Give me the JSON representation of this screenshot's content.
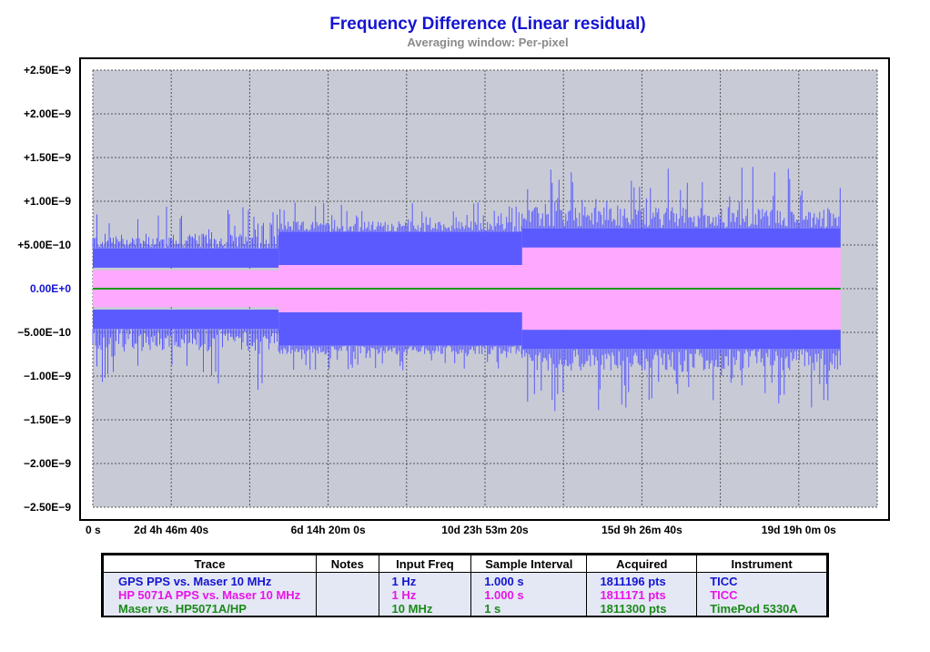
{
  "title": "Frequency Difference (Linear residual)",
  "subtitle": "Averaging window: Per-pixel",
  "chart_data": {
    "type": "line",
    "title": "Frequency Difference (Linear residual)",
    "subtitle": "Averaging window: Per-pixel",
    "y_ticks": [
      "+2.50E−9",
      "+2.00E−9",
      "+1.50E−9",
      "+1.00E−9",
      "+5.00E−10",
      "0.00E+0",
      "−5.00E−10",
      "−1.00E−9",
      "−1.50E−9",
      "−2.00E−9",
      "−2.50E−9"
    ],
    "y_tick_values": [
      2.5e-09,
      2e-09,
      1.5e-09,
      1e-09,
      5e-10,
      0,
      -5e-10,
      -1e-09,
      -1.5e-09,
      -2e-09,
      -2.5e-09
    ],
    "ylim": [
      -2.5e-09,
      2.5e-09
    ],
    "x_ticks": [
      "0 s",
      "2d 4h 46m 40s",
      "6d 14h 20m 0s",
      "10d 23h 53m 20s",
      "15d 9h 26m 40s",
      "19d 19h 0m 0s"
    ],
    "x_tick_values_s": [
      0,
      190000,
      570000,
      950000,
      1330000,
      1710000
    ],
    "xlim_s": [
      0,
      1900000
    ],
    "data_end_s": 1811300,
    "grid": true,
    "series": [
      {
        "name": "GPS PPS vs. Maser 10 MHz",
        "color": "#5a5aff",
        "segments": [
          {
            "from_s": 0,
            "to_s": 450000,
            "core_hi": 4.6e-10,
            "core_lo": 2.4e-10,
            "spike": 9.5e-10,
            "spike_lo": -1.2e-09
          },
          {
            "from_s": 450000,
            "to_s": 1040000,
            "core_hi": 6.5e-10,
            "core_lo": 2.7e-10,
            "spike": 1e-09,
            "spike_lo": -9.5e-10
          },
          {
            "from_s": 1040000,
            "to_s": 1811300,
            "core_hi": 6.9e-10,
            "core_lo": 4.7e-10,
            "spike": 1.4e-09,
            "spike_lo": -1.4e-09
          }
        ]
      },
      {
        "name": "HP 5071A PPS vs. Maser 10 MHz",
        "color": "#ffa8ff",
        "segments": [
          {
            "from_s": 0,
            "to_s": 450000,
            "core_hi": 2.1e-10,
            "core_lo": -2.1e-10
          },
          {
            "from_s": 450000,
            "to_s": 1040000,
            "core_hi": 2.7e-10,
            "core_lo": -2.7e-10
          },
          {
            "from_s": 1040000,
            "to_s": 1811300,
            "core_hi": 4.7e-10,
            "core_lo": -4.7e-10
          }
        ]
      },
      {
        "name": "Maser vs. HP5071A/HP",
        "color": "#1a9a1a",
        "segments": [
          {
            "from_s": 0,
            "to_s": 1811300,
            "core_hi": 1e-11,
            "core_lo": -1e-11
          }
        ]
      }
    ]
  },
  "legend": {
    "headers": [
      "Trace",
      "Notes",
      "Input Freq",
      "Sample Interval",
      "Acquired",
      "Instrument"
    ],
    "rows": [
      {
        "color": "#1414d2",
        "trace": "GPS PPS vs. Maser 10 MHz",
        "notes": "",
        "input_freq": "1 Hz",
        "sample_interval": "1.000 s",
        "acquired": "1811196 pts",
        "instrument": "TICC"
      },
      {
        "color": "#e814e8",
        "trace": "HP 5071A PPS vs. Maser 10 MHz",
        "notes": "",
        "input_freq": "1 Hz",
        "sample_interval": "1.000 s",
        "acquired": "1811171 pts",
        "instrument": "TICC"
      },
      {
        "color": "#1a8a1a",
        "trace": "Maser vs. HP5071A/HP",
        "notes": "",
        "input_freq": "10 MHz",
        "sample_interval": "1 s",
        "acquired": "1811300 pts",
        "instrument": "TimePod 5330A"
      }
    ]
  }
}
